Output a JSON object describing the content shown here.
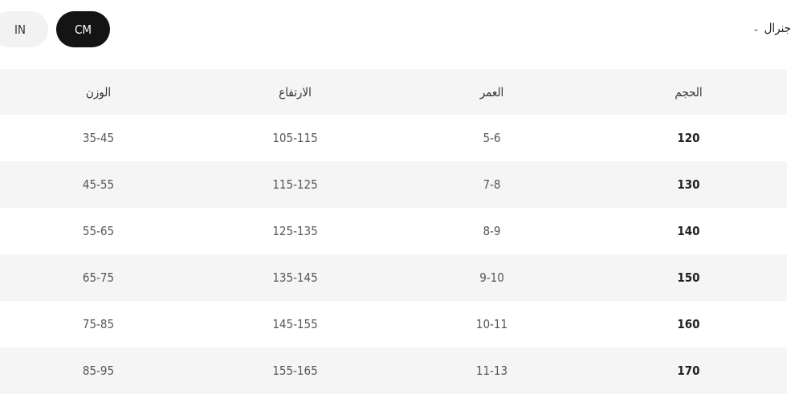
{
  "units": {
    "options": [
      "IN",
      "CM"
    ],
    "selected": "CM"
  },
  "category_dropdown": {
    "label": "جنرال",
    "icon": "chevron-down-icon"
  },
  "table": {
    "headers": [
      "الحجم",
      "العمر",
      "الارتفاع",
      "الوزن"
    ],
    "rows": [
      [
        "120",
        "5-6",
        "105-115",
        "35-45"
      ],
      [
        "130",
        "7-8",
        "115-125",
        "45-55"
      ],
      [
        "140",
        "8-9",
        "125-135",
        "55-65"
      ],
      [
        "150",
        "9-10",
        "135-145",
        "65-75"
      ],
      [
        "160",
        "10-11",
        "145-155",
        "75-85"
      ],
      [
        "170",
        "11-13",
        "155-165",
        "85-95"
      ]
    ]
  },
  "colors": {
    "selected_pill": "#141414",
    "unselected_pill": "#f2f2f2",
    "stripe": "#f5f5f5"
  }
}
